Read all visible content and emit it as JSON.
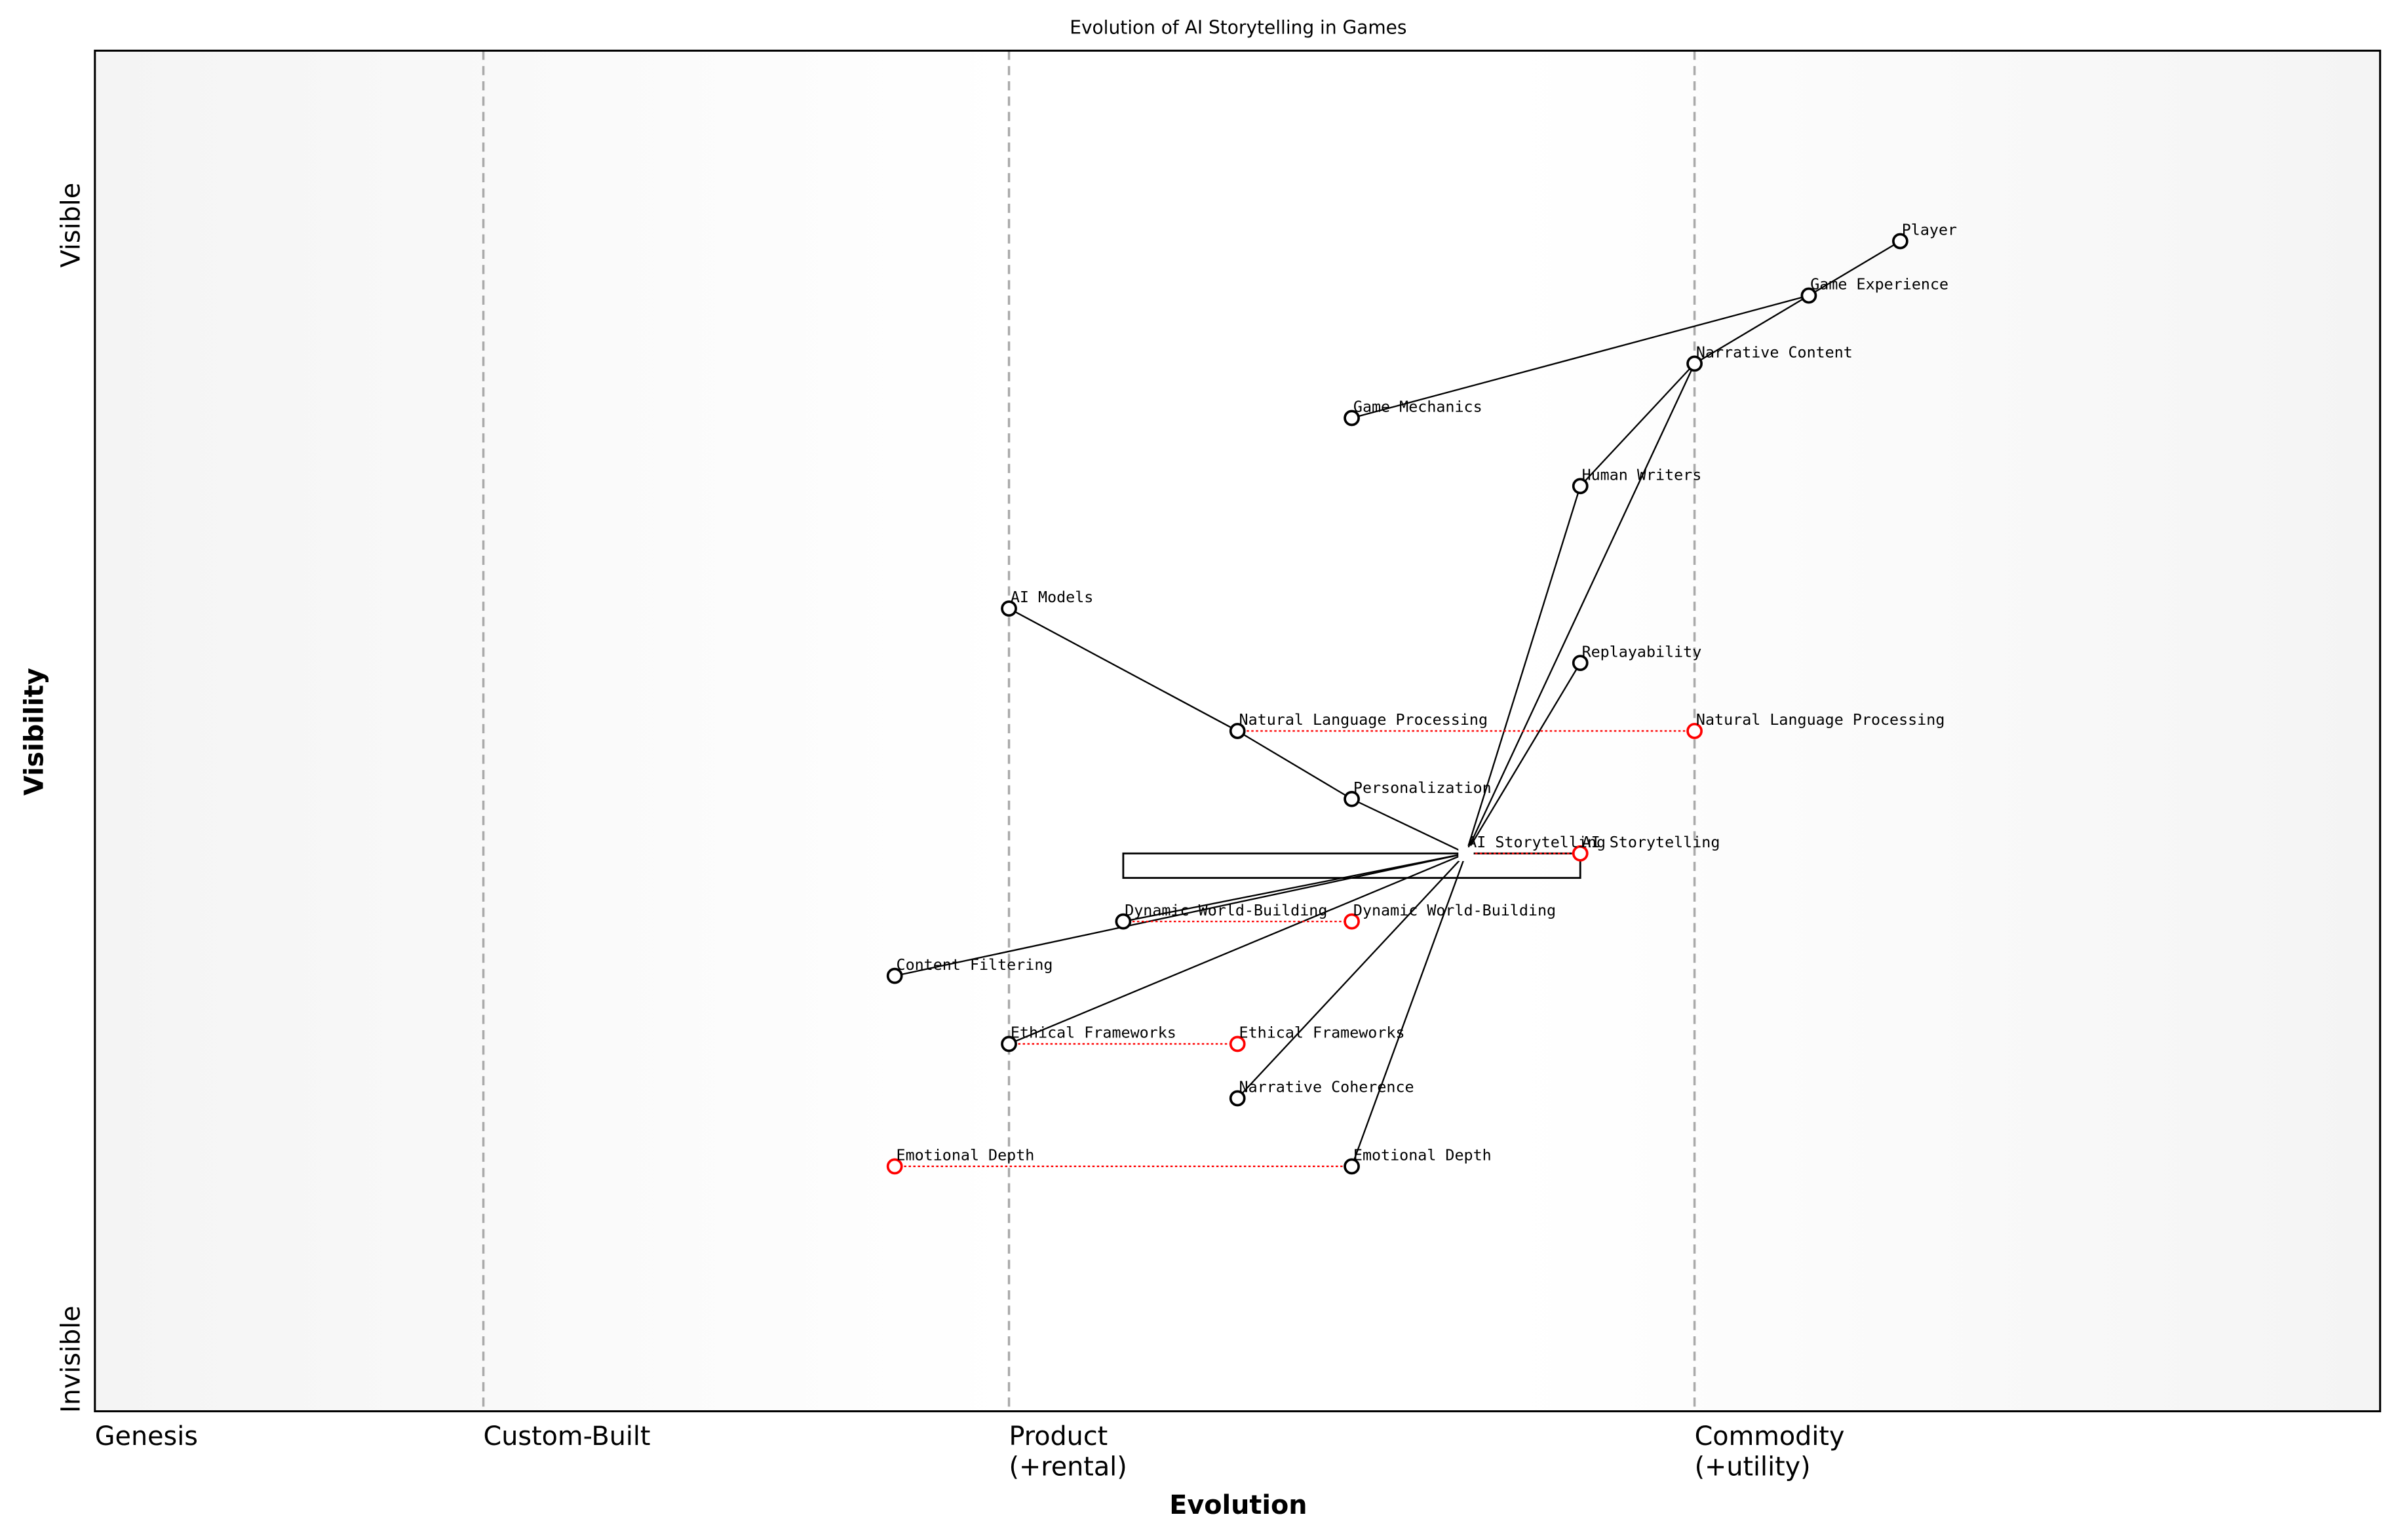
{
  "title": "Evolution of AI Storytelling in Games",
  "x_axis": {
    "label": "Evolution",
    "stages": [
      {
        "name": "Genesis",
        "lines": [
          "Genesis"
        ],
        "at": 0.0
      },
      {
        "name": "Custom-Built",
        "lines": [
          "Custom-Built"
        ],
        "at": 0.17
      },
      {
        "name": "Product",
        "lines": [
          "Product",
          "(+rental)"
        ],
        "at": 0.4
      },
      {
        "name": "Commodity",
        "lines": [
          "Commodity",
          "(+utility)"
        ],
        "at": 0.7
      }
    ]
  },
  "y_axis": {
    "label": "Visibility",
    "top": "Visible",
    "bottom": "Invisible"
  },
  "colors": {
    "node": "#000000",
    "evolved": "#ff0000",
    "divider": "#aaaaaa"
  },
  "components": [
    {
      "name": "Player",
      "evolution": 0.79,
      "visibility": 0.86
    },
    {
      "name": "Game Experience",
      "evolution": 0.75,
      "visibility": 0.82
    },
    {
      "name": "Narrative Content",
      "evolution": 0.7,
      "visibility": 0.77
    },
    {
      "name": "Game Mechanics",
      "evolution": 0.55,
      "visibility": 0.73
    },
    {
      "name": "Human Writers",
      "evolution": 0.65,
      "visibility": 0.68
    },
    {
      "name": "AI Models",
      "evolution": 0.4,
      "visibility": 0.59
    },
    {
      "name": "Replayability",
      "evolution": 0.65,
      "visibility": 0.55
    },
    {
      "name": "Natural Language Processing",
      "evolution": 0.5,
      "visibility": 0.5
    },
    {
      "name": "Personalization",
      "evolution": 0.55,
      "visibility": 0.45
    },
    {
      "name": "AI Storytelling",
      "evolution": 0.6,
      "visibility": 0.41,
      "hidden_marker": true
    },
    {
      "name": "Dynamic World-Building",
      "evolution": 0.45,
      "visibility": 0.36
    },
    {
      "name": "Content Filtering",
      "evolution": 0.35,
      "visibility": 0.32
    },
    {
      "name": "Ethical Frameworks",
      "evolution": 0.4,
      "visibility": 0.27
    },
    {
      "name": "Narrative Coherence",
      "evolution": 0.5,
      "visibility": 0.23
    },
    {
      "name": "Emotional Depth",
      "evolution": 0.55,
      "visibility": 0.18
    }
  ],
  "evolutions": [
    {
      "name": "Natural Language Processing",
      "to": 0.7
    },
    {
      "name": "AI Storytelling",
      "to": 0.65
    },
    {
      "name": "Dynamic World-Building",
      "to": 0.55
    },
    {
      "name": "Ethical Frameworks",
      "to": 0.5
    },
    {
      "name": "Emotional Depth",
      "to": 0.35
    }
  ],
  "links": [
    [
      "Player",
      "Game Experience"
    ],
    [
      "Game Experience",
      "Narrative Content"
    ],
    [
      "Game Experience",
      "Game Mechanics"
    ],
    [
      "Narrative Content",
      "Human Writers"
    ],
    [
      "Narrative Content",
      "AI Storytelling"
    ],
    [
      "Human Writers",
      "AI Storytelling"
    ],
    [
      "AI Storytelling",
      "Replayability"
    ],
    [
      "AI Models",
      "Natural Language Processing"
    ],
    [
      "Natural Language Processing",
      "Personalization"
    ],
    [
      "Personalization",
      "AI Storytelling"
    ],
    [
      "AI Storytelling",
      "Dynamic World-Building"
    ],
    [
      "AI Storytelling",
      "Content Filtering"
    ],
    [
      "AI Storytelling",
      "Ethical Frameworks"
    ],
    [
      "AI Storytelling",
      "Narrative Coherence"
    ],
    [
      "AI Storytelling",
      "Emotional Depth"
    ]
  ],
  "pipeline": {
    "component": "AI Storytelling",
    "from": 0.45,
    "to": 0.65
  }
}
